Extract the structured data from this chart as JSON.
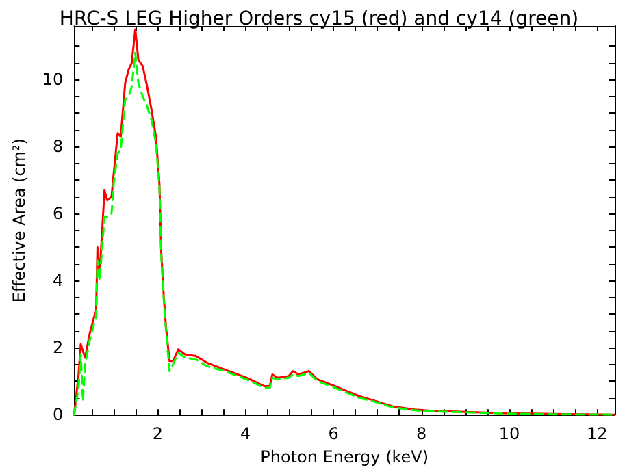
{
  "chart_data": {
    "type": "line",
    "title": "HRC-S LEG Higher Orders cy15 (red) and cy14 (green)",
    "xlabel": "Photon Energy (keV)",
    "ylabel": "Effective Area (cm²)",
    "xlim": [
      0.1,
      12.4
    ],
    "ylim": [
      0,
      11.6
    ],
    "xticks": [
      {
        "value": 0.5,
        "label": null
      },
      {
        "value": 1,
        "label": null
      },
      {
        "value": 1.5,
        "label": null
      },
      2,
      {
        "value": 2.5,
        "label": null
      },
      {
        "value": 3,
        "label": null
      },
      {
        "value": 3.5,
        "label": null
      },
      4,
      {
        "value": 4.5,
        "label": null
      },
      {
        "value": 5,
        "label": null
      },
      {
        "value": 5.5,
        "label": null
      },
      6,
      {
        "value": 6.5,
        "label": null
      },
      {
        "value": 7,
        "label": null
      },
      {
        "value": 7.5,
        "label": null
      },
      8,
      {
        "value": 8.5,
        "label": null
      },
      {
        "value": 9,
        "label": null
      },
      {
        "value": 9.5,
        "label": null
      },
      10,
      {
        "value": 10.5,
        "label": null
      },
      {
        "value": 11,
        "label": null
      },
      {
        "value": 11.5,
        "label": null
      },
      12
    ],
    "yticks": [
      0,
      {
        "value": 0.5,
        "label": null
      },
      {
        "value": 1,
        "label": null
      },
      {
        "value": 1.5,
        "label": null
      },
      2,
      {
        "value": 2.5,
        "label": null
      },
      {
        "value": 3,
        "label": null
      },
      {
        "value": 3.5,
        "label": null
      },
      4,
      {
        "value": 4.5,
        "label": null
      },
      {
        "value": 5,
        "label": null
      },
      {
        "value": 5.5,
        "label": null
      },
      6,
      {
        "value": 6.5,
        "label": null
      },
      {
        "value": 7,
        "label": null
      },
      {
        "value": 7.5,
        "label": null
      },
      8,
      {
        "value": 8.5,
        "label": null
      },
      {
        "value": 9,
        "label": null
      },
      {
        "value": 9.5,
        "label": null
      },
      10,
      {
        "value": 10.5,
        "label": null
      },
      {
        "value": 11,
        "label": null
      }
    ],
    "grid": false,
    "marker": "none",
    "series": [
      {
        "color": "#ff0000",
        "line_style": "solid",
        "x": [
          0.1,
          0.2,
          0.25,
          0.35,
          0.45,
          0.55,
          0.6,
          0.63,
          0.68,
          0.79,
          0.85,
          0.95,
          1.0,
          1.09,
          1.16,
          1.26,
          1.34,
          1.41,
          1.49,
          1.56,
          1.66,
          1.76,
          1.86,
          1.96,
          2.04,
          2.08,
          2.14,
          2.19,
          2.27,
          2.35,
          2.47,
          2.62,
          2.87,
          3.12,
          3.52,
          4.03,
          4.43,
          4.55,
          4.61,
          4.73,
          4.98,
          5.08,
          5.2,
          5.44,
          5.64,
          6.04,
          6.59,
          6.85,
          7.34,
          7.85,
          8.16,
          9.0,
          10.0,
          11.0,
          12.4
        ],
        "values": [
          0,
          1.2,
          2.1,
          1.7,
          2.4,
          2.9,
          3.1,
          5.0,
          4.2,
          6.7,
          6.4,
          6.5,
          7.2,
          8.4,
          8.3,
          9.9,
          10.3,
          10.5,
          11.5,
          10.6,
          10.4,
          9.8,
          9.1,
          8.3,
          6.9,
          4.9,
          3.5,
          2.6,
          1.6,
          1.6,
          1.95,
          1.8,
          1.75,
          1.55,
          1.35,
          1.1,
          0.85,
          0.85,
          1.2,
          1.1,
          1.15,
          1.3,
          1.2,
          1.3,
          1.05,
          0.85,
          0.55,
          0.45,
          0.25,
          0.15,
          0.12,
          0.08,
          0.04,
          0.02,
          0
        ]
      },
      {
        "color": "#00ff00",
        "line_style": "dashed",
        "x": [
          0.1,
          0.2,
          0.25,
          0.3,
          0.35,
          0.45,
          0.55,
          0.6,
          0.63,
          0.68,
          0.79,
          0.85,
          0.95,
          1.0,
          1.09,
          1.16,
          1.26,
          1.34,
          1.41,
          1.49,
          1.56,
          1.66,
          1.76,
          1.86,
          1.96,
          2.04,
          2.08,
          2.14,
          2.19,
          2.27,
          2.35,
          2.47,
          2.62,
          2.87,
          3.12,
          3.52,
          4.03,
          4.43,
          4.55,
          4.61,
          4.73,
          4.98,
          5.08,
          5.2,
          5.44,
          5.64,
          6.04,
          6.59,
          6.85,
          7.34,
          7.85,
          8.16,
          9.0,
          10.0,
          11.0,
          12.4
        ],
        "values": [
          0,
          0.8,
          1.8,
          0.4,
          1.5,
          2.2,
          2.7,
          2.9,
          4.6,
          4.0,
          5.9,
          5.9,
          6.0,
          6.9,
          7.8,
          7.9,
          9.4,
          9.5,
          9.8,
          10.8,
          9.9,
          9.5,
          9.2,
          8.8,
          8.1,
          6.8,
          4.8,
          3.4,
          2.5,
          1.3,
          1.5,
          1.85,
          1.7,
          1.65,
          1.45,
          1.3,
          1.05,
          0.8,
          0.8,
          1.1,
          1.05,
          1.1,
          1.2,
          1.15,
          1.25,
          1.0,
          0.8,
          0.5,
          0.42,
          0.22,
          0.13,
          0.1,
          0.07,
          0.03,
          0.01,
          0
        ]
      }
    ]
  }
}
